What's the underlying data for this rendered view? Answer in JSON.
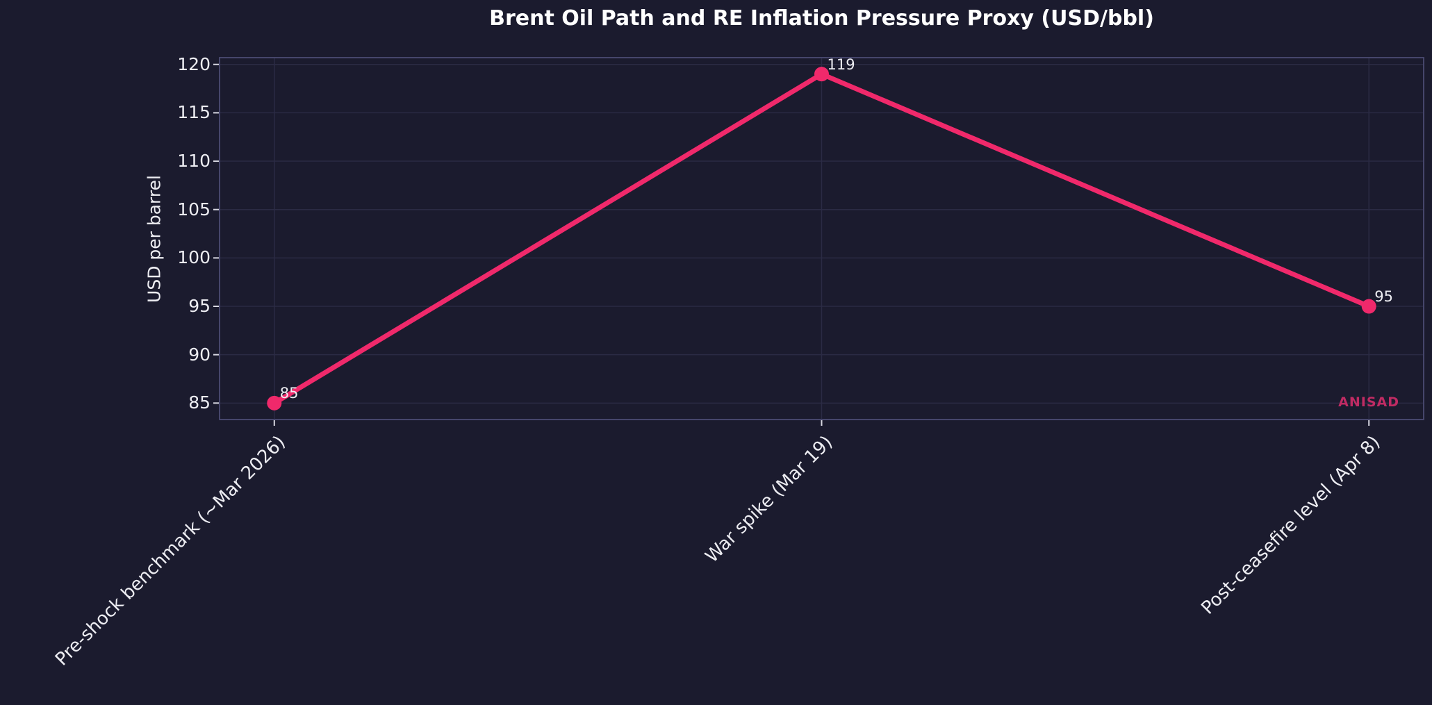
{
  "watermark": "ANISAD",
  "colors": {
    "bg": "#1b1b2e",
    "title": "#ffffff",
    "text": "#ededf2",
    "grid": "#2b2b44",
    "spine": "#46466b",
    "tick": "#d8d8e2",
    "line": "#f0296b",
    "watermark": "#c02b63"
  },
  "chart_data": {
    "type": "line",
    "title": "Brent Oil Path and RE Inflation Pressure Proxy (USD/bbl)",
    "xlabel": "",
    "ylabel": "USD per barrel",
    "categories": [
      "Pre-shock benchmark (~Mar 2026)",
      "War spike (Mar 19)",
      "Post-ceasefire level (Apr 8)"
    ],
    "values": [
      85,
      119,
      95
    ],
    "point_labels": [
      "85",
      "119",
      "95"
    ],
    "yticks": [
      85,
      90,
      95,
      100,
      105,
      110,
      115,
      120
    ],
    "ylim": [
      83.3,
      120.7
    ],
    "xlim": [
      -0.1,
      2.1
    ],
    "grid": true,
    "legend": "none",
    "marker": "circle",
    "series_color": "#f0296b"
  }
}
